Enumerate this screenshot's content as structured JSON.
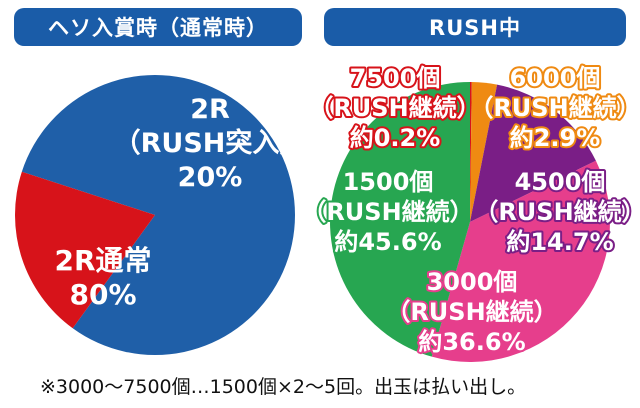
{
  "colors": {
    "header_bg": "#1a5ca8",
    "header_text": "#ffffff",
    "blue": "#1f5fa8",
    "red": "#d7131a",
    "green": "#27a651",
    "orange": "#ef8a12",
    "purple": "#7a1e86",
    "pink": "#e63e8c"
  },
  "headers": {
    "left": "ヘソ入賞時（通常時）",
    "right": "RUSH中"
  },
  "footnote": "※3000〜7500個…1500個×2〜5回。出玉は払い出し。",
  "chart_data": [
    {
      "type": "pie",
      "title": "ヘソ入賞時（通常時）",
      "slices": [
        {
          "key": "normal",
          "value": 80,
          "color": "#1f5fa8",
          "lines": [
            "2R通常",
            "80%"
          ]
        },
        {
          "key": "entry",
          "value": 20,
          "color": "#d7131a",
          "lines": [
            "2R",
            "（RUSH突入）",
            "20%"
          ]
        }
      ]
    },
    {
      "type": "pie",
      "title": "RUSH中",
      "slices": [
        {
          "key": "p7500",
          "value": 0.2,
          "color": "#d7131a",
          "lines": [
            "7500個",
            "（RUSH継続）",
            "約0.2%"
          ]
        },
        {
          "key": "p6000",
          "value": 2.9,
          "color": "#ef8a12",
          "lines": [
            "6000個",
            "（RUSH継続）",
            "約2.9%"
          ]
        },
        {
          "key": "p4500",
          "value": 14.7,
          "color": "#7a1e86",
          "lines": [
            "4500個",
            "（RUSH継続）",
            "約14.7%"
          ]
        },
        {
          "key": "p3000",
          "value": 36.6,
          "color": "#e63e8c",
          "lines": [
            "3000個",
            "（RUSH継続）",
            "約36.6%"
          ]
        },
        {
          "key": "p1500",
          "value": 45.6,
          "color": "#27a651",
          "lines": [
            "1500個",
            "（RUSH継続）",
            "約45.6%"
          ]
        }
      ]
    }
  ]
}
